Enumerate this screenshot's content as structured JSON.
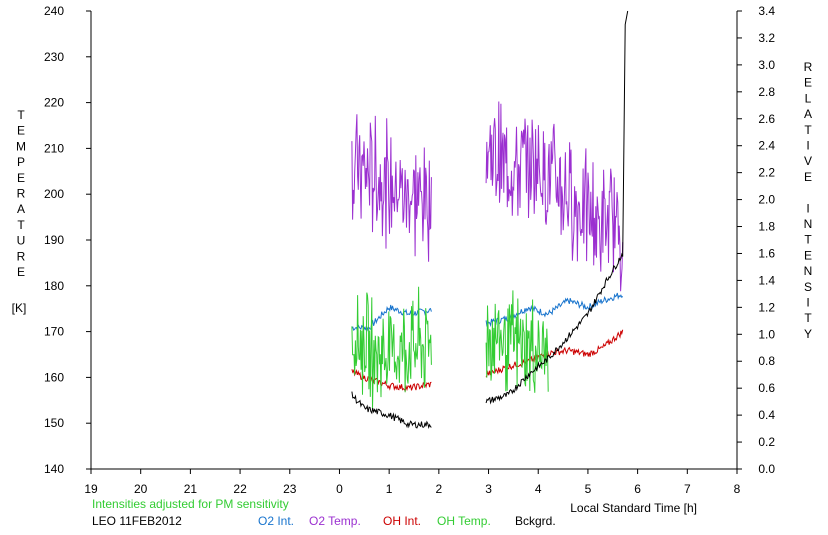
{
  "chart_data": {
    "type": "line",
    "left_axis_label": "TEMPERATURE",
    "left_axis_unit": "[K]",
    "right_axis_label": "RELATIVE INTENSITY",
    "xlabel": "Local Standard Time [h]",
    "note": "Intensities adjusted for PM sensitivity",
    "site_date": "LEO 11FEB2012",
    "ylim_left": [
      140,
      240
    ],
    "ylim_right": [
      0.0,
      3.4
    ],
    "xlim": [
      19,
      32
    ],
    "x_ticks": [
      "19",
      "20",
      "21",
      "22",
      "23",
      "0",
      "1",
      "2",
      "3",
      "4",
      "5",
      "6",
      "7",
      "8"
    ],
    "y_left_ticks": [
      "140",
      "150",
      "160",
      "170",
      "180",
      "190",
      "200",
      "210",
      "220",
      "230",
      "240"
    ],
    "y_right_ticks": [
      "0.0",
      "0.2",
      "0.4",
      "0.6",
      "0.8",
      "1.0",
      "1.2",
      "1.4",
      "1.6",
      "1.8",
      "2.0",
      "2.2",
      "2.4",
      "2.6",
      "2.8",
      "3.0",
      "3.2",
      "3.4"
    ],
    "segments": [
      [
        24.25,
        25.85
      ],
      [
        26.95,
        29.7
      ]
    ],
    "series": [
      {
        "name": "O2 Int.",
        "axis": "right",
        "color": "#1874cd",
        "style": "smooth",
        "points": [
          [
            24.25,
            1.05
          ],
          [
            24.6,
            1.05
          ],
          [
            25.0,
            1.2
          ],
          [
            25.4,
            1.15
          ],
          [
            25.85,
            1.18
          ],
          [
            26.95,
            1.08
          ],
          [
            27.4,
            1.12
          ],
          [
            27.8,
            1.2
          ],
          [
            28.2,
            1.15
          ],
          [
            28.6,
            1.25
          ],
          [
            29.0,
            1.2
          ],
          [
            29.3,
            1.25
          ],
          [
            29.7,
            1.3
          ]
        ]
      },
      {
        "name": "O2 Temp.",
        "axis": "left",
        "color": "#9b30d0",
        "style": "jagged",
        "points": [
          [
            24.25,
            205
          ],
          [
            24.5,
            205
          ],
          [
            25.0,
            202
          ],
          [
            25.4,
            200
          ],
          [
            25.85,
            198
          ],
          [
            26.95,
            210
          ],
          [
            27.4,
            205
          ],
          [
            27.8,
            207
          ],
          [
            28.2,
            205
          ],
          [
            28.6,
            200
          ],
          [
            29.0,
            195
          ],
          [
            29.3,
            193
          ]
        ],
        "amplitude": 16
      },
      {
        "name": "OH Int.",
        "axis": "right",
        "color": "#cc0000",
        "style": "smooth",
        "points": [
          [
            24.25,
            0.72
          ],
          [
            24.5,
            0.68
          ],
          [
            25.0,
            0.62
          ],
          [
            25.4,
            0.6
          ],
          [
            25.85,
            0.63
          ],
          [
            26.95,
            0.7
          ],
          [
            27.4,
            0.76
          ],
          [
            27.8,
            0.8
          ],
          [
            28.2,
            0.86
          ],
          [
            28.6,
            0.88
          ],
          [
            29.0,
            0.85
          ],
          [
            29.3,
            0.9
          ],
          [
            29.7,
            1.02
          ]
        ]
      },
      {
        "name": "OH Temp.",
        "axis": "left",
        "color": "#33cc33",
        "style": "jagged",
        "segments_x": [
          [
            24.25,
            25.85
          ],
          [
            26.95,
            28.2
          ]
        ],
        "points": [
          [
            24.25,
            170
          ],
          [
            24.7,
            165
          ],
          [
            25.2,
            166
          ],
          [
            25.85,
            167
          ],
          [
            26.95,
            170
          ],
          [
            27.5,
            167
          ],
          [
            28.2,
            165
          ]
        ],
        "amplitude": 14
      },
      {
        "name": "Bckgrd.",
        "axis": "right",
        "color": "#000000",
        "style": "smooth",
        "points": [
          [
            24.25,
            0.55
          ],
          [
            24.5,
            0.45
          ],
          [
            25.0,
            0.4
          ],
          [
            25.4,
            0.33
          ],
          [
            25.85,
            0.33
          ],
          [
            26.95,
            0.5
          ],
          [
            27.4,
            0.55
          ],
          [
            27.8,
            0.7
          ],
          [
            28.2,
            0.82
          ],
          [
            28.6,
            0.98
          ],
          [
            29.0,
            1.15
          ],
          [
            29.3,
            1.35
          ],
          [
            29.7,
            1.6
          ],
          [
            29.75,
            3.3
          ],
          [
            29.8,
            3.4
          ]
        ]
      }
    ],
    "grid": false,
    "legend_placement": "bottom"
  }
}
